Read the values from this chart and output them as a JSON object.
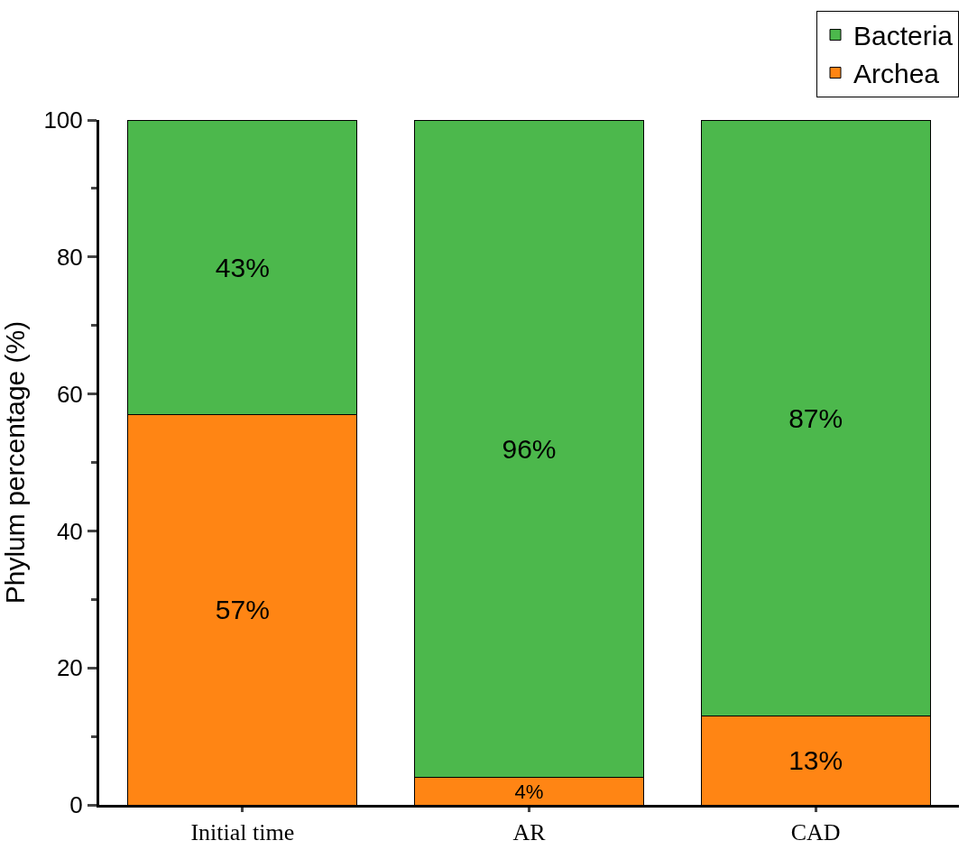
{
  "chart_data": {
    "type": "bar",
    "stacked": true,
    "ylabel": "Phylum percentage (%)",
    "categories": [
      "Initial time",
      "AR",
      "CAD"
    ],
    "series": [
      {
        "name": "Archea",
        "color": "#ff8514",
        "values": [
          57,
          4,
          13
        ],
        "value_labels": [
          "57%",
          "4%",
          "13%"
        ]
      },
      {
        "name": "Bacteria",
        "color": "#4cb84c",
        "values": [
          43,
          96,
          87
        ],
        "value_labels": [
          "43%",
          "96%",
          "87%"
        ]
      }
    ],
    "ylim": [
      0,
      100
    ],
    "yticks": [
      0,
      20,
      40,
      60,
      80,
      100
    ],
    "legend": "top right"
  }
}
